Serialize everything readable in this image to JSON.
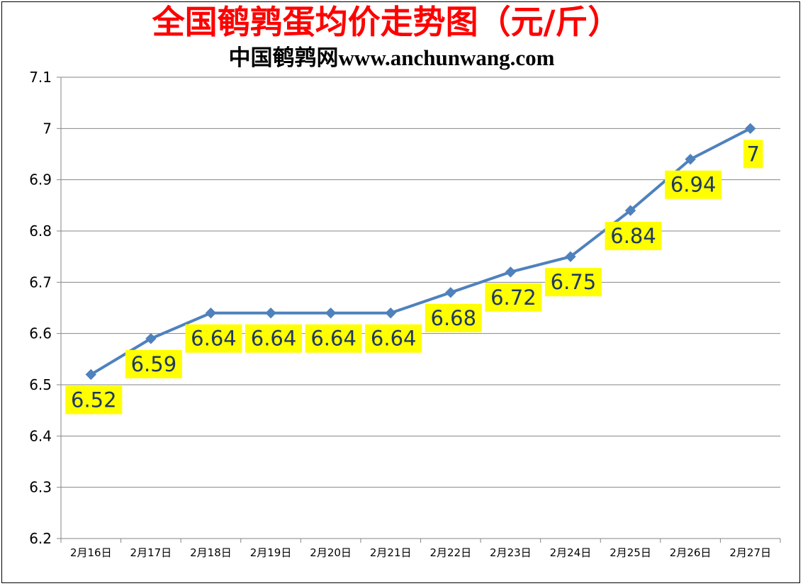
{
  "chart_data": {
    "type": "line",
    "title": "全国鹌鹑蛋均价走势图（元/斤）",
    "subtitle": "中国鹌鹑网www.anchunwang.com",
    "categories": [
      "2月16日",
      "2月17日",
      "2月18日",
      "2月19日",
      "2月20日",
      "2月21日",
      "2月22日",
      "2月23日",
      "2月24日",
      "2月25日",
      "2月26日",
      "2月27日"
    ],
    "series": [
      {
        "values": [
          6.52,
          6.59,
          6.64,
          6.64,
          6.64,
          6.64,
          6.68,
          6.72,
          6.75,
          6.84,
          6.94,
          7
        ]
      }
    ],
    "data_labels": [
      "6.52",
      "6.59",
      "6.64",
      "6.64",
      "6.64",
      "6.64",
      "6.68",
      "6.72",
      "6.75",
      "6.84",
      "6.94",
      "7"
    ],
    "y_ticks": [
      "6.2",
      "6.3",
      "6.4",
      "6.5",
      "6.6",
      "6.7",
      "6.8",
      "6.9",
      "7",
      "7.1"
    ],
    "ylim": [
      6.2,
      7.1
    ],
    "grid": true,
    "legend": "none",
    "line_color": "#4f81bd",
    "label_bg_color": "#ffff00",
    "label_text_color": "#1f3864"
  }
}
